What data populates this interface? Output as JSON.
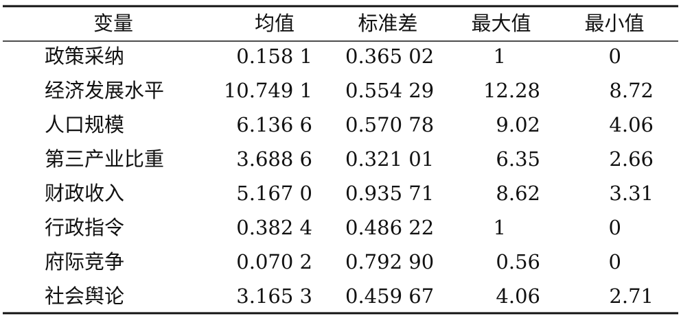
{
  "table": {
    "header": [
      "变量",
      "均值",
      "标准差",
      "最大值",
      "最小值"
    ],
    "rows": [
      [
        "政策采纳",
        "0.158 1",
        "0.365 02",
        "1",
        "0"
      ],
      [
        "经济发展水平",
        "10.749 1",
        "0.554 29",
        "12.28",
        "8.72"
      ],
      [
        "人口规模",
        "6.136 6",
        "0.570 78",
        "9.02",
        "4.06"
      ],
      [
        "第三产业比重",
        "3.688 6",
        "0.321 01",
        "6.35",
        "2.66"
      ],
      [
        "财政收入",
        "5.167 0",
        "0.935 71",
        "8.62",
        "3.31"
      ],
      [
        "行政指令",
        "0.382 4",
        "0.486 22",
        "1",
        "0"
      ],
      [
        "府际竞争",
        "0.070 2",
        "0.792 90",
        "0.56",
        "0"
      ],
      [
        "社会舆论",
        "3.165 3",
        "0.459 67",
        "4.06",
        "2.71"
      ]
    ]
  }
}
